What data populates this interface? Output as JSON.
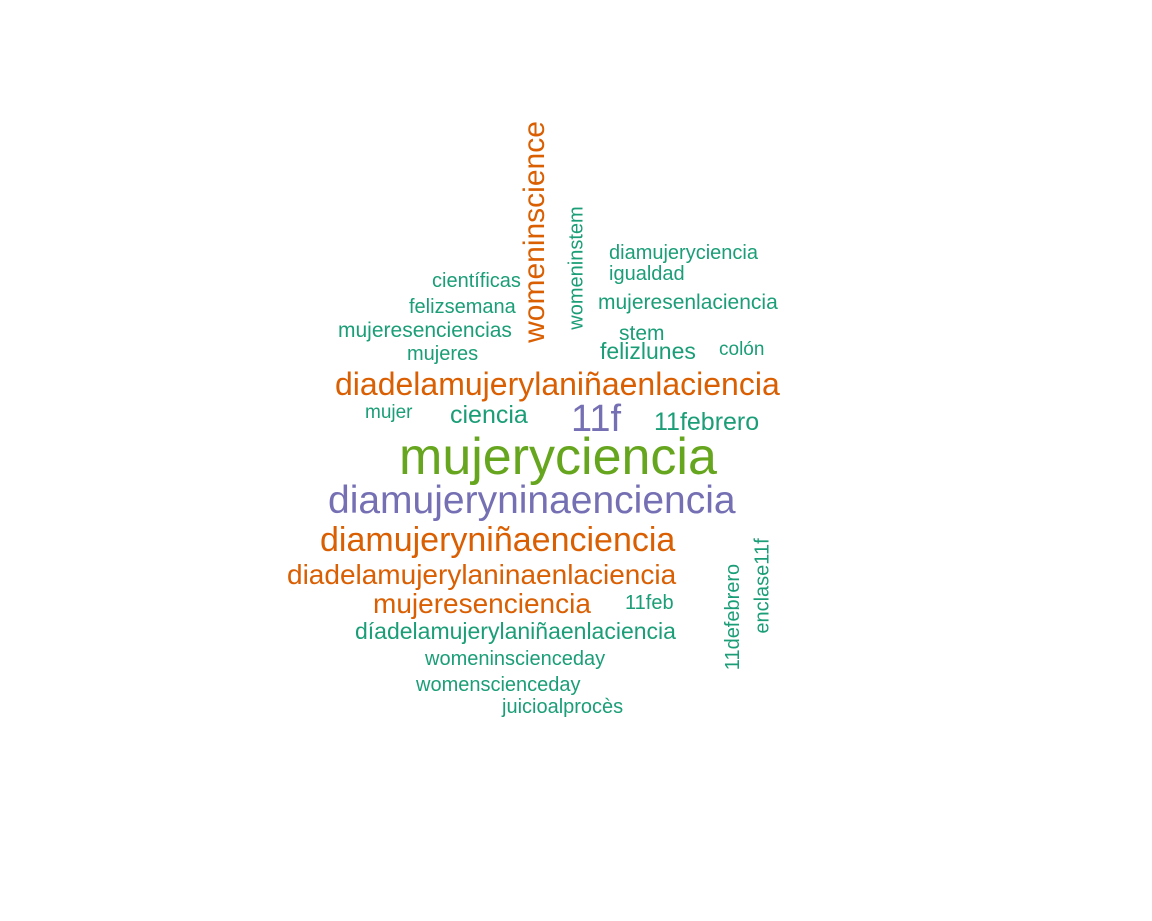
{
  "colors": {
    "teal": "#1b9e77",
    "orange": "#d95f02",
    "purple": "#7570b3",
    "green": "#66a61e"
  },
  "words": {
    "womeninscience": "womeninscience",
    "womeninstem": "womeninstem",
    "diamujeryciencia": "diamujeryciencia",
    "igualdad": "igualdad",
    "cientificas": "científicas",
    "felizsemana": "felizsemana",
    "mujeresenlaciencia": "mujeresenlaciencia",
    "mujeresenciencias": "mujeresenciencias",
    "stem": "stem",
    "mujeres": "mujeres",
    "felizlunes": "felizlunes",
    "colon": "colón",
    "diadelamujerylaninaenlaciencia_tilde": "diadelamujerylaniñaenlaciencia",
    "mujer": "mujer",
    "ciencia": "ciencia",
    "11f": "11f",
    "11febrero": "11febrero",
    "mujeryciencia": "mujeryciencia",
    "diamujeryninaenciencia": "diamujeryninaenciencia",
    "diamujeryninaenciencia_tilde": "diamujeryniñaenciencia",
    "enclase11f": "enclase11f",
    "diadelamujerylaninaenlaciencia": "diadelamujerylaninaenlaciencia",
    "11defebrero": "11defebrero",
    "mujeresenciencia": "mujeresenciencia",
    "11feb": "11feb",
    "diadelamujerylaninaenlaciencia_accent": "díadelamujerylaniñaenlaciencia",
    "womeninscienceday": "womeninscienceday",
    "womenscienceday": "womenscienceday",
    "juicioalproces": "juicioalprocès"
  }
}
